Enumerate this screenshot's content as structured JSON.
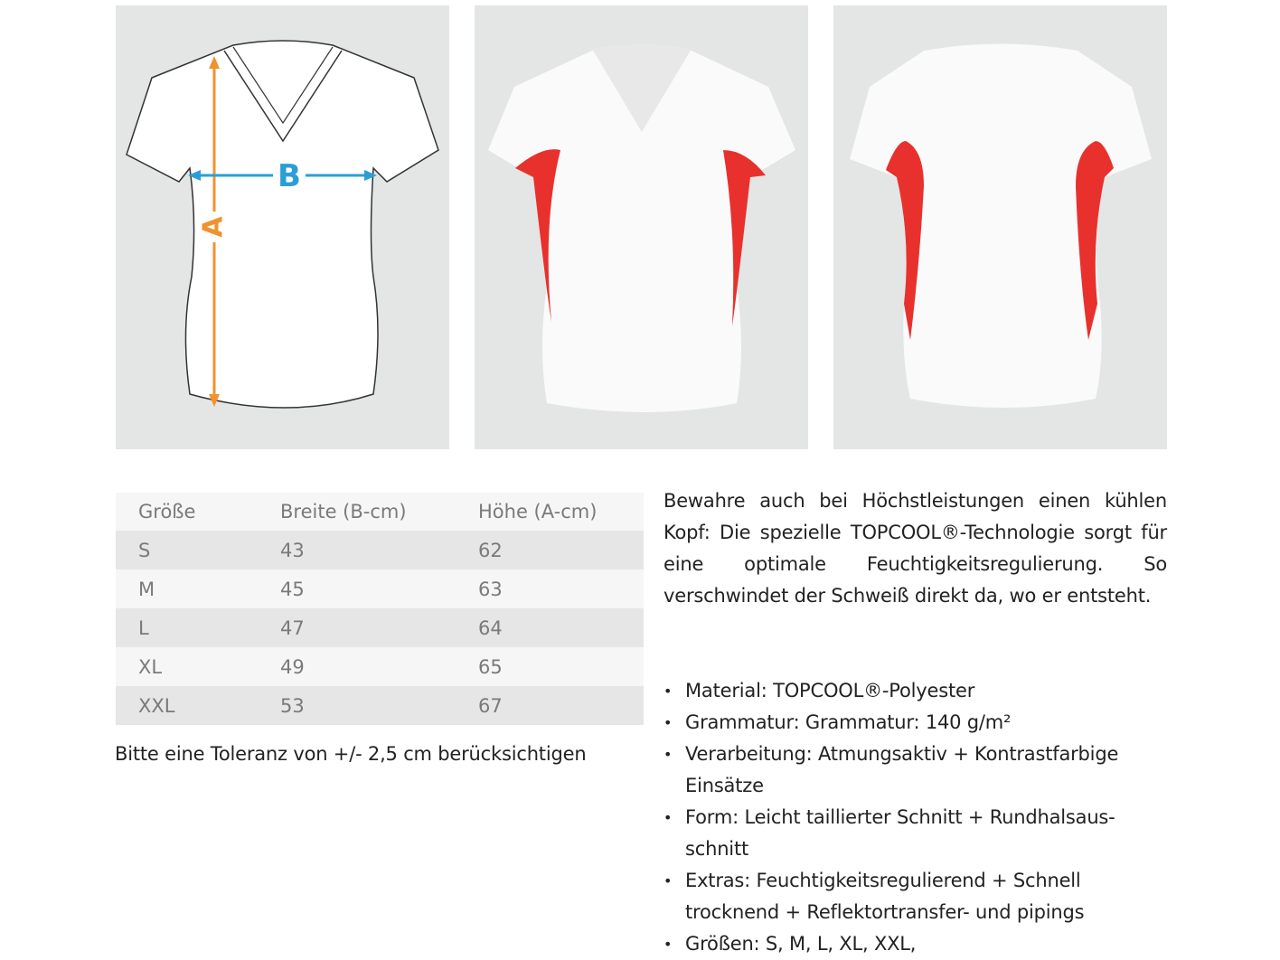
{
  "images": {
    "measure_diagram": {
      "label_a": "A",
      "label_b": "B",
      "color_a": "#f0922f",
      "color_b": "#2a9fd6"
    },
    "front_view": {
      "accent_color": "#e8312c"
    },
    "back_view": {
      "accent_color": "#e8312c"
    }
  },
  "size_table": {
    "headers": [
      "Größe",
      "Breite (B-cm)",
      "Höhe (A-cm)"
    ],
    "rows": [
      [
        "S",
        "43",
        "62"
      ],
      [
        "M",
        "45",
        "63"
      ],
      [
        "L",
        "47",
        "64"
      ],
      [
        "XL",
        "49",
        "65"
      ],
      [
        "XXL",
        "53",
        "67"
      ]
    ]
  },
  "tolerance_note": "Bitte eine Toleranz von +/- 2,5 cm berücksichtigen",
  "description": "Bewahre auch bei Höchstleistungen einen kühlen Kopf: Die spezielle TOPCOOL®-Technolo­gie sorgt für eine optimale Feuchtigkeitsregulie­rung. So verschwindet der Schweiß direkt da, wo er entsteht.",
  "features": [
    "Material: TOPCOOL®-Polyester",
    "Grammatur: Grammatur: 140 g/m²",
    "Verarbeitung: Atmungsaktiv + Kontrastfarbige Einsätze",
    "Form: Leicht taillierter Schnitt + Rundhalsaus­schnitt",
    "Extras: Feuchtigkeitsregulierend + Schnell trocknend + Reflektortransfer- und pipings",
    "Größen:  S, M, L, XL, XXL,"
  ]
}
